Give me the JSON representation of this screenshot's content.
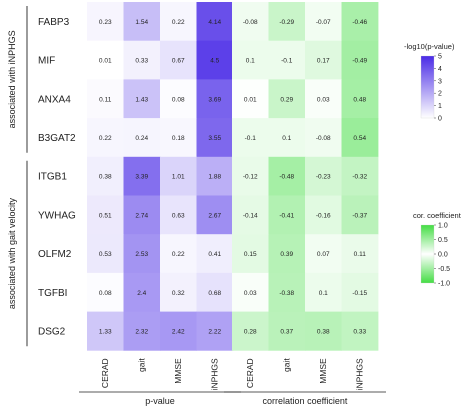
{
  "chart_data": [
    {
      "type": "heatmap",
      "name": "p-value",
      "xlabel": "p-value",
      "columns": [
        "CERAD",
        "gait",
        "MMSE",
        "iNPHGS"
      ],
      "rows": [
        "FABP3",
        "MIF",
        "ANXA4",
        "B3GAT2",
        "ITGB1",
        "YWHAG",
        "OLFM2",
        "TGFBI",
        "DSG2"
      ],
      "values": [
        [
          0.23,
          1.54,
          0.22,
          4.14
        ],
        [
          0.01,
          0.33,
          0.67,
          4.5
        ],
        [
          0.11,
          1.43,
          0.08,
          3.69
        ],
        [
          0.22,
          0.24,
          0.18,
          3.55
        ],
        [
          0.38,
          3.39,
          1.01,
          1.88
        ],
        [
          0.51,
          2.74,
          0.63,
          2.67
        ],
        [
          0.53,
          2.53,
          0.22,
          0.41
        ],
        [
          0.08,
          2.4,
          0.32,
          0.68
        ],
        [
          1.33,
          2.32,
          2.42,
          2.22
        ]
      ],
      "labels": [
        [
          "0.23",
          "1.54",
          "0.22",
          "4.14"
        ],
        [
          "0.01",
          "0.33",
          "0.67",
          "4.5"
        ],
        [
          "0.11",
          "1.43",
          "0.08",
          "3.69"
        ],
        [
          "0.22",
          "0.24",
          "0.18",
          "3.55"
        ],
        [
          "0.38",
          "3.39",
          "1.01",
          "1.88"
        ],
        [
          "0.51",
          "2.74",
          "0.63",
          "2.67"
        ],
        [
          "0.53",
          "2.53",
          "0.22",
          "0.41"
        ],
        [
          "0.08",
          "2.4",
          "0.32",
          "0.68"
        ],
        [
          "1.33",
          "2.32",
          "2.42",
          "2.22"
        ]
      ],
      "legend": {
        "title": "-log10(p-value)",
        "ticks": [
          "5",
          "4",
          "3",
          "2",
          "1",
          "0"
        ],
        "range": [
          0,
          5
        ],
        "low_color": "#ffffff",
        "high_color": "#4a2be6"
      }
    },
    {
      "type": "heatmap",
      "name": "correlation coefficient",
      "xlabel": "correlation  coefficient",
      "columns": [
        "CERAD",
        "gait",
        "MMSE",
        "iNPHGS"
      ],
      "rows": [
        "FABP3",
        "MIF",
        "ANXA4",
        "B3GAT2",
        "ITGB1",
        "YWHAG",
        "OLFM2",
        "TGFBI",
        "DSG2"
      ],
      "values": [
        [
          -0.08,
          -0.29,
          -0.07,
          -0.46
        ],
        [
          0.1,
          -0.1,
          0.17,
          -0.49
        ],
        [
          0.01,
          0.29,
          0.03,
          0.48
        ],
        [
          -0.1,
          0.1,
          -0.08,
          0.54
        ],
        [
          -0.12,
          -0.48,
          -0.23,
          -0.32
        ],
        [
          -0.14,
          -0.41,
          -0.16,
          -0.37
        ],
        [
          0.15,
          0.39,
          0.07,
          0.11
        ],
        [
          0.03,
          -0.38,
          0.1,
          -0.15
        ],
        [
          0.28,
          0.37,
          0.38,
          0.33
        ]
      ],
      "labels": [
        [
          "-0.08",
          "-0.29",
          "-0.07",
          "-0.46"
        ],
        [
          "0.1",
          "-0.1",
          "0.17",
          "-0.49"
        ],
        [
          "0.01",
          "0.29",
          "0.03",
          "0.48"
        ],
        [
          "-0.1",
          "0.1",
          "-0.08",
          "0.54"
        ],
        [
          "-0.12",
          "-0.48",
          "-0.23",
          "-0.32"
        ],
        [
          "-0.14",
          "-0.41",
          "-0.16",
          "-0.37"
        ],
        [
          "0.15",
          "0.39",
          "0.07",
          "0.11"
        ],
        [
          "0.03",
          "-0.38",
          "0.1",
          "-0.15"
        ],
        [
          "0.28",
          "0.37",
          "0.38",
          "0.33"
        ]
      ],
      "legend": {
        "title": "cor. coefficient",
        "ticks": [
          "1.0",
          "0.5",
          "0.0",
          "-0.5",
          "-1.0"
        ],
        "range": [
          -1,
          1
        ],
        "color": "#44dd44"
      }
    }
  ],
  "groups": [
    {
      "label": "associated with iNPHGS",
      "rows": [
        0,
        3
      ]
    },
    {
      "label": "associated with gait velocity",
      "rows": [
        4,
        8
      ]
    }
  ]
}
